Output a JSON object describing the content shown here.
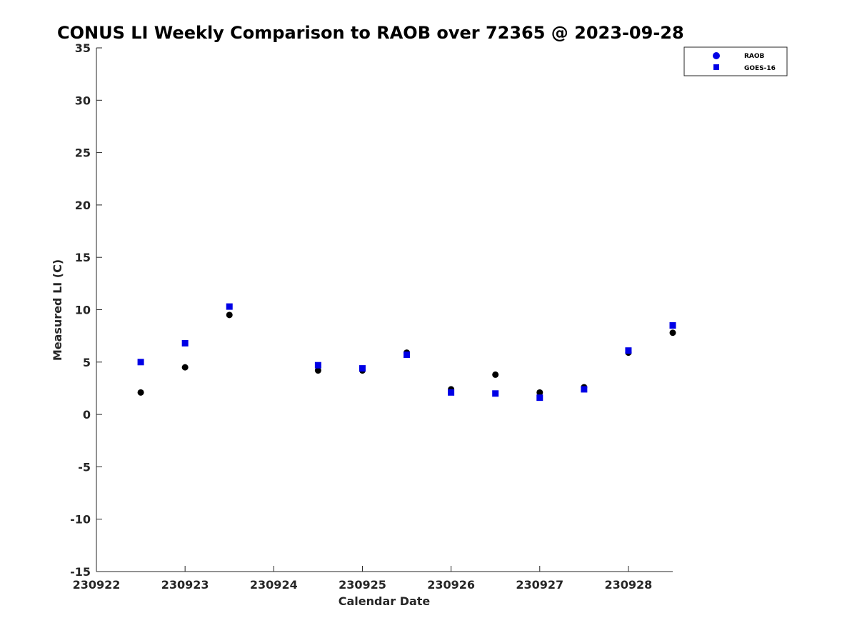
{
  "chart_data": {
    "type": "scatter",
    "title": "CONUS LI Weekly Comparison to RAOB over 72365 @ 2023-09-28",
    "xlabel": "Calendar Date",
    "ylabel": "Measured LI (C)",
    "xlim": [
      230922,
      230928.5
    ],
    "ylim": [
      -15,
      35
    ],
    "xticks": [
      230922,
      230923,
      230924,
      230925,
      230926,
      230927,
      230928
    ],
    "xtick_labels": [
      "230922",
      "230923",
      "230924",
      "230925",
      "230926",
      "230927",
      "230928"
    ],
    "yticks": [
      35,
      30,
      25,
      20,
      15,
      10,
      5,
      0,
      -5,
      -10,
      -15
    ],
    "ytick_labels": [
      "35",
      "30",
      "25",
      "20",
      "15",
      "10",
      "5",
      "0",
      "-5",
      "-10",
      "-15"
    ],
    "grid": false,
    "legend_position": "top-right",
    "series": [
      {
        "name": "RAOB",
        "marker": "circle",
        "color": "#0000e6",
        "x": [
          230922.5,
          230923,
          230923.5,
          230924.5,
          230925,
          230925.5,
          230926,
          230926.5,
          230927,
          230927.5,
          230928,
          230928.5
        ],
        "values": [
          2.1,
          4.5,
          9.5,
          4.2,
          4.2,
          5.9,
          2.4,
          3.8,
          2.1,
          2.6,
          5.9,
          7.8
        ]
      },
      {
        "name": "GOES-16",
        "marker": "square",
        "color": "#0000e6",
        "x": [
          230922.5,
          230923,
          230923.5,
          230924.5,
          230925,
          230925.5,
          230926,
          230926.5,
          230927,
          230927.5,
          230928,
          230928.5
        ],
        "values": [
          5.0,
          6.8,
          10.3,
          4.7,
          4.4,
          5.7,
          2.1,
          2.0,
          1.6,
          2.4,
          6.1,
          8.5
        ]
      }
    ]
  }
}
